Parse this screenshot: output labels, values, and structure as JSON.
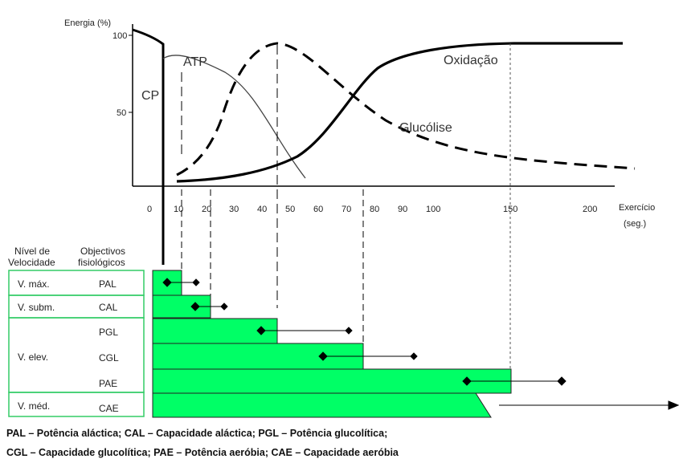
{
  "chart_data": {
    "type": "line",
    "ylabel": "Energia (%)",
    "xlabel": "Exercício",
    "xlabel_unit": "(seg.)",
    "y_ticks": [
      "100",
      "50"
    ],
    "x_ticks": [
      "0",
      "10",
      "20",
      "30",
      "40",
      "50",
      "60",
      "70",
      "80",
      "90",
      "100",
      "150",
      "200"
    ],
    "series_labels": {
      "cp": "CP",
      "atp": "ATP",
      "oxid": "Oxidação",
      "gluc": "Glucólise"
    }
  },
  "table": {
    "header_col1": [
      "Nível de",
      "Velocidade"
    ],
    "header_col2": [
      "Objectivos",
      "fisiológicos"
    ],
    "groups": [
      {
        "name": "V. máx."
      },
      {
        "name": "V. subm."
      },
      {
        "name": "V. elev."
      },
      {
        "name": "V. méd."
      }
    ],
    "rows": [
      {
        "code": "PAL"
      },
      {
        "code": "CAL"
      },
      {
        "code": "PGL"
      },
      {
        "code": "CGL"
      },
      {
        "code": "PAE"
      },
      {
        "code": "CAE"
      }
    ]
  },
  "legend": {
    "line1": "PAL – Potência aláctica; CAL – Capacidade aláctica; PGL – Potência glucolítica;",
    "line2": "CGL – Capacidade glucolítica; PAE – Potência aeróbia; CAE – Capacidade aeróbia"
  },
  "colors": {
    "bar_fill": "#00ff66",
    "bar_stroke": "#222222",
    "table_border": "#33cc66"
  }
}
